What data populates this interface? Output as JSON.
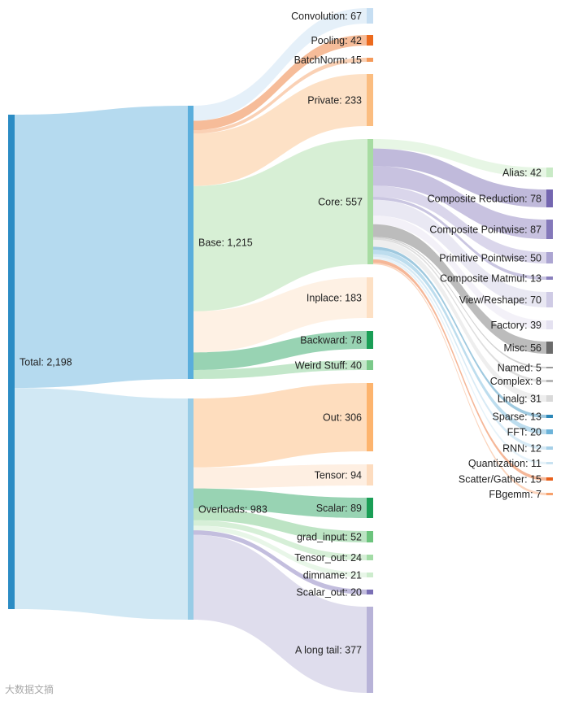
{
  "chart_data": {
    "type": "sankey",
    "nodes": [
      {
        "id": "total",
        "label": "Total",
        "value": 2198,
        "color": "#2b8cc4"
      },
      {
        "id": "base",
        "label": "Base",
        "value": 1215,
        "color": "#5aaedc"
      },
      {
        "id": "overloads",
        "label": "Overloads",
        "value": 983,
        "color": "#98cce6"
      },
      {
        "id": "convolution",
        "label": "Convolution",
        "value": 67,
        "color": "#c6def2"
      },
      {
        "id": "pooling",
        "label": "Pooling",
        "value": 42,
        "color": "#ec6a1d"
      },
      {
        "id": "batchnorm",
        "label": "BatchNorm",
        "value": 15,
        "color": "#f59a5a"
      },
      {
        "id": "private",
        "label": "Private",
        "value": 233,
        "color": "#fbbd80"
      },
      {
        "id": "core",
        "label": "Core",
        "value": 557,
        "color": "#a7dca2"
      },
      {
        "id": "inplace",
        "label": "Inplace",
        "value": 183,
        "color": "#fde0c4"
      },
      {
        "id": "backward",
        "label": "Backward",
        "value": 78,
        "color": "#1a9e56"
      },
      {
        "id": "weird",
        "label": "Weird Stuff",
        "value": 40,
        "color": "#7bc98a"
      },
      {
        "id": "out",
        "label": "Out",
        "value": 306,
        "color": "#fdb46e"
      },
      {
        "id": "tensor",
        "label": "Tensor",
        "value": 94,
        "color": "#fddcbf"
      },
      {
        "id": "scalar",
        "label": "Scalar",
        "value": 89,
        "color": "#1a9e56"
      },
      {
        "id": "grad_input",
        "label": "grad_input",
        "value": 52,
        "color": "#6cc47d"
      },
      {
        "id": "tensor_out",
        "label": "Tensor_out",
        "value": 24,
        "color": "#a3dca6"
      },
      {
        "id": "dimname",
        "label": "dimname",
        "value": 21,
        "color": "#cdeccd"
      },
      {
        "id": "scalar_out",
        "label": "Scalar_out",
        "value": 20,
        "color": "#7a6fb5"
      },
      {
        "id": "longtail",
        "label": "A long tail",
        "value": 377,
        "color": "#b8b3d8"
      },
      {
        "id": "alias",
        "label": "Alias",
        "value": 42,
        "color": "#c9eac6"
      },
      {
        "id": "comp_red",
        "label": "Composite Reduction",
        "value": 78,
        "color": "#7466b0"
      },
      {
        "id": "comp_pw",
        "label": "Composite Pointwise",
        "value": 87,
        "color": "#8478ba"
      },
      {
        "id": "prim_pw",
        "label": "Primitive Pointwise",
        "value": 50,
        "color": "#aca5d2"
      },
      {
        "id": "comp_mm",
        "label": "Composite Matmul",
        "value": 13,
        "color": "#8a80bd"
      },
      {
        "id": "view",
        "label": "View/Reshape",
        "value": 70,
        "color": "#cfcbe5"
      },
      {
        "id": "factory",
        "label": "Factory",
        "value": 39,
        "color": "#e4e1f0"
      },
      {
        "id": "misc",
        "label": "Misc",
        "value": 56,
        "color": "#6b6b6b"
      },
      {
        "id": "named",
        "label": "Named",
        "value": 5,
        "color": "#9a9a9a"
      },
      {
        "id": "complex",
        "label": "Complex",
        "value": 8,
        "color": "#b5b5b5"
      },
      {
        "id": "linalg",
        "label": "Linalg",
        "value": 31,
        "color": "#d9d9d9"
      },
      {
        "id": "sparse",
        "label": "Sparse",
        "value": 13,
        "color": "#2b87b8"
      },
      {
        "id": "fft",
        "label": "FFT",
        "value": 20,
        "color": "#6cb3d9"
      },
      {
        "id": "rnn",
        "label": "RNN",
        "value": 12,
        "color": "#a6d0e8"
      },
      {
        "id": "quant",
        "label": "Quantization",
        "value": 11,
        "color": "#c8e2f1"
      },
      {
        "id": "scatter",
        "label": "Scatter/Gather",
        "value": 15,
        "color": "#e8601b"
      },
      {
        "id": "fbgemm",
        "label": "FBgemm",
        "value": 7,
        "color": "#f7a06b"
      }
    ],
    "links": [
      {
        "source": "total",
        "target": "base",
        "value": 1215
      },
      {
        "source": "total",
        "target": "overloads",
        "value": 983
      },
      {
        "source": "base",
        "target": "convolution",
        "value": 67
      },
      {
        "source": "base",
        "target": "pooling",
        "value": 42
      },
      {
        "source": "base",
        "target": "batchnorm",
        "value": 15
      },
      {
        "source": "base",
        "target": "private",
        "value": 233
      },
      {
        "source": "base",
        "target": "core",
        "value": 557
      },
      {
        "source": "base",
        "target": "inplace",
        "value": 183
      },
      {
        "source": "base",
        "target": "backward",
        "value": 78
      },
      {
        "source": "base",
        "target": "weird",
        "value": 40
      },
      {
        "source": "overloads",
        "target": "out",
        "value": 306
      },
      {
        "source": "overloads",
        "target": "tensor",
        "value": 94
      },
      {
        "source": "overloads",
        "target": "scalar",
        "value": 89
      },
      {
        "source": "overloads",
        "target": "grad_input",
        "value": 52
      },
      {
        "source": "overloads",
        "target": "tensor_out",
        "value": 24
      },
      {
        "source": "overloads",
        "target": "dimname",
        "value": 21
      },
      {
        "source": "overloads",
        "target": "scalar_out",
        "value": 20
      },
      {
        "source": "overloads",
        "target": "longtail",
        "value": 377
      },
      {
        "source": "core",
        "target": "alias",
        "value": 42
      },
      {
        "source": "core",
        "target": "comp_red",
        "value": 78
      },
      {
        "source": "core",
        "target": "comp_pw",
        "value": 87
      },
      {
        "source": "core",
        "target": "prim_pw",
        "value": 50
      },
      {
        "source": "core",
        "target": "comp_mm",
        "value": 13
      },
      {
        "source": "core",
        "target": "view",
        "value": 70
      },
      {
        "source": "core",
        "target": "factory",
        "value": 39
      },
      {
        "source": "core",
        "target": "misc",
        "value": 56
      },
      {
        "source": "core",
        "target": "named",
        "value": 5
      },
      {
        "source": "core",
        "target": "complex",
        "value": 8
      },
      {
        "source": "core",
        "target": "linalg",
        "value": 31
      },
      {
        "source": "core",
        "target": "sparse",
        "value": 13
      },
      {
        "source": "core",
        "target": "fft",
        "value": 20
      },
      {
        "source": "core",
        "target": "rnn",
        "value": 12
      },
      {
        "source": "core",
        "target": "quant",
        "value": 11
      },
      {
        "source": "core",
        "target": "scatter",
        "value": 15
      },
      {
        "source": "core",
        "target": "fbgemm",
        "value": 7
      }
    ]
  },
  "watermark": "大数据文摘"
}
